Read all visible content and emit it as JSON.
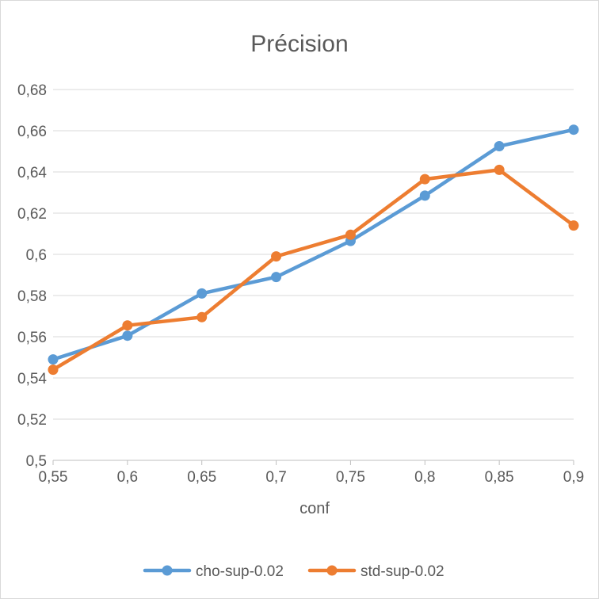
{
  "chart_data": {
    "type": "line",
    "title": "Précision",
    "xlabel": "conf",
    "ylabel": "",
    "x": [
      0.55,
      0.6,
      0.65,
      0.7,
      0.75,
      0.8,
      0.85,
      0.9
    ],
    "x_tick_labels": [
      "0,55",
      "0,6",
      "0,65",
      "0,7",
      "0,75",
      "0,8",
      "0,85",
      "0,9"
    ],
    "ylim": [
      0.5,
      0.68
    ],
    "y_ticks": [
      0.5,
      0.52,
      0.54,
      0.56,
      0.58,
      0.6,
      0.62,
      0.64,
      0.66,
      0.68
    ],
    "y_tick_labels": [
      "0,5",
      "0,52",
      "0,54",
      "0,56",
      "0,58",
      "0,6",
      "0,62",
      "0,64",
      "0,66",
      "0,68"
    ],
    "grid": true,
    "legend_position": "bottom",
    "series": [
      {
        "name": "cho-sup-0.02",
        "color": "#5b9bd5",
        "values": [
          0.549,
          0.5605,
          0.581,
          0.589,
          0.6065,
          0.6285,
          0.6525,
          0.6605
        ]
      },
      {
        "name": "std-sup-0.02",
        "color": "#ed7d31",
        "values": [
          0.544,
          0.5655,
          0.5695,
          0.599,
          0.6095,
          0.6365,
          0.641,
          0.614
        ]
      }
    ],
    "gridline_color": "#d9d9d9"
  }
}
